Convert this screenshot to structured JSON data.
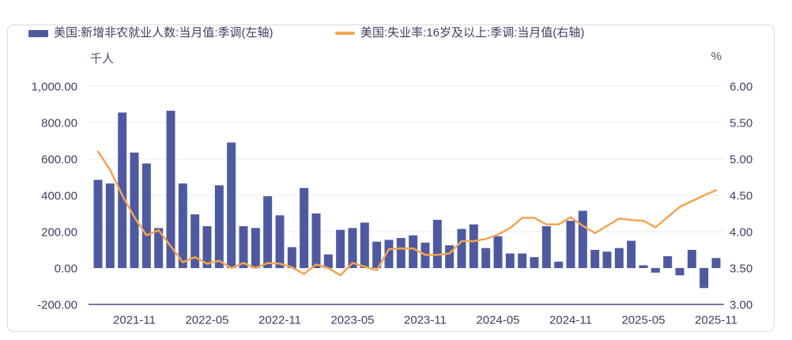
{
  "legend": [
    {
      "label": "美国:新增非农就业人数:当月值:季调(左轴)",
      "type": "bar"
    },
    {
      "label": "美国:失业率:16岁及以上:季调:当月值(右轴)",
      "type": "line"
    }
  ],
  "colors": {
    "bar": "#4e5aa0",
    "line": "#f3a451",
    "grid": "#ebebf3",
    "axis_line": "#727ca8",
    "text": "#3c4161"
  },
  "left_axis": {
    "unit": "千人",
    "tick_labels": [
      "1,000.00",
      "800.00",
      "600.00",
      "400.00",
      "200.00",
      "0.00",
      "-200.00"
    ],
    "tick_values": [
      1000,
      800,
      600,
      400,
      200,
      0,
      -200
    ]
  },
  "right_axis": {
    "unit": "%",
    "tick_labels": [
      "6.00",
      "5.50",
      "5.00",
      "4.50",
      "4.00",
      "3.50",
      "3.00"
    ],
    "tick_values": [
      6.0,
      5.5,
      5.0,
      4.5,
      4.0,
      3.5,
      3.0
    ]
  },
  "x_axis": {
    "tick_labels": [
      "2021-11",
      "2022-05",
      "2022-11",
      "2023-05",
      "2023-11",
      "2024-05",
      "2024-11",
      "2025-05",
      "2025-11"
    ],
    "tick_indices": [
      3,
      9,
      15,
      21,
      27,
      33,
      39,
      45,
      51
    ]
  },
  "chart_data": {
    "type": "combo",
    "grid": true,
    "legend_position": "top",
    "left_ylim": [
      -200,
      1000
    ],
    "right_ylim": [
      3.0,
      6.0
    ],
    "categories": [
      "2021-08",
      "2021-09",
      "2021-10",
      "2021-11",
      "2021-12",
      "2022-01",
      "2022-02",
      "2022-03",
      "2022-04",
      "2022-05",
      "2022-06",
      "2022-07",
      "2022-08",
      "2022-09",
      "2022-10",
      "2022-11",
      "2022-12",
      "2023-01",
      "2023-02",
      "2023-03",
      "2023-04",
      "2023-05",
      "2023-06",
      "2023-07",
      "2023-08",
      "2023-09",
      "2023-10",
      "2023-11",
      "2023-12",
      "2024-01",
      "2024-02",
      "2024-03",
      "2024-04",
      "2024-05",
      "2024-06",
      "2024-07",
      "2024-08",
      "2024-09",
      "2024-10",
      "2024-11",
      "2024-12",
      "2025-01",
      "2025-02",
      "2025-03",
      "2025-04",
      "2025-05",
      "2025-06",
      "2025-07",
      "2025-08",
      "2025-09",
      "2025-10",
      "2025-11"
    ],
    "series": [
      {
        "name": "美国:新增非农就业人数:当月值:季调(左轴)",
        "type": "bar",
        "axis": "left",
        "unit": "千人",
        "values": [
          485,
          465,
          855,
          635,
          575,
          220,
          865,
          465,
          295,
          230,
          455,
          690,
          230,
          220,
          395,
          290,
          115,
          440,
          300,
          75,
          210,
          220,
          250,
          145,
          155,
          165,
          180,
          140,
          265,
          125,
          215,
          240,
          110,
          175,
          80,
          80,
          60,
          230,
          35,
          260,
          315,
          100,
          90,
          110,
          150,
          15,
          -25,
          65,
          -40,
          100,
          -110,
          55
        ]
      },
      {
        "name": "美国:失业率:16岁及以上:季调:当月值(右轴)",
        "type": "line",
        "axis": "right",
        "unit": "%",
        "values": [
          5.1,
          4.85,
          4.5,
          4.2,
          3.95,
          4.02,
          3.8,
          3.58,
          3.65,
          3.56,
          3.6,
          3.5,
          3.57,
          3.5,
          3.57,
          3.56,
          3.51,
          3.42,
          3.55,
          3.5,
          3.4,
          3.57,
          3.52,
          3.47,
          3.76,
          3.77,
          3.77,
          3.68,
          3.68,
          3.7,
          3.87,
          3.87,
          3.9,
          3.96,
          4.05,
          4.19,
          4.19,
          4.1,
          4.1,
          4.2,
          4.08,
          3.98,
          4.08,
          4.18,
          4.16,
          4.15,
          4.06,
          4.2,
          4.34,
          4.42,
          4.5,
          4.57
        ]
      }
    ]
  }
}
